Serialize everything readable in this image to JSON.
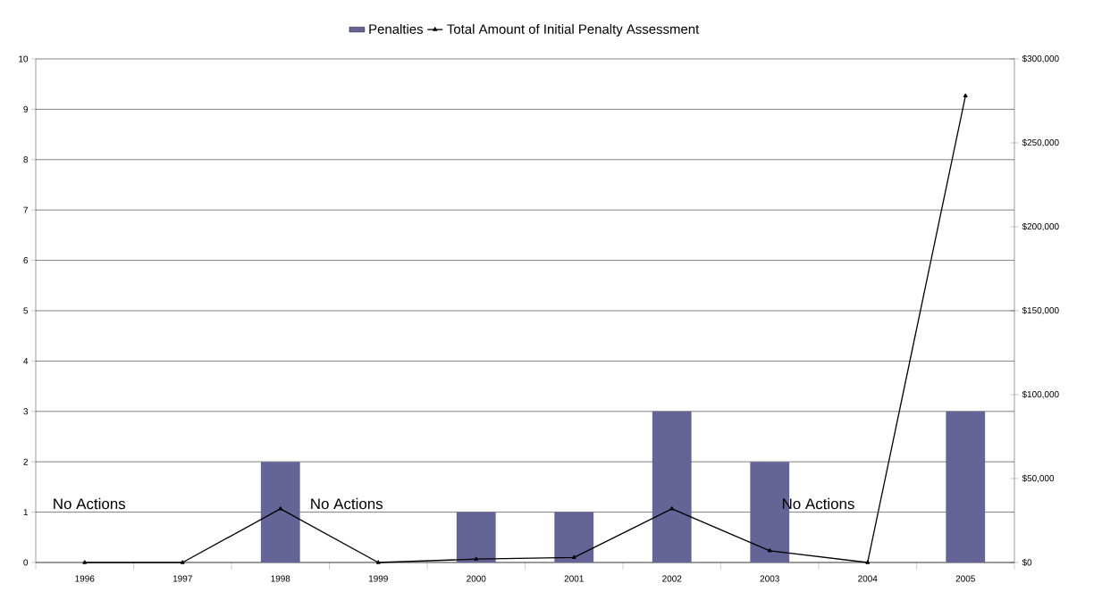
{
  "chart_data": {
    "type": "bar",
    "categories": [
      "1996",
      "1997",
      "1998",
      "1999",
      "2000",
      "2001",
      "2002",
      "2003",
      "2004",
      "2005"
    ],
    "series": [
      {
        "name": "Penalties",
        "color": "#646496",
        "values": [
          0,
          0,
          2,
          0,
          1,
          1,
          3,
          2,
          0,
          3
        ]
      },
      {
        "name": "Total Amount of Initial Penalty Assessment",
        "type": "line",
        "axis": "y2",
        "color": "#000000",
        "values": [
          0,
          0,
          32000,
          0,
          2000,
          3000,
          32000,
          7000,
          0,
          278000
        ]
      }
    ],
    "ylim": [
      0,
      10
    ],
    "yticks": [
      0,
      1,
      2,
      3,
      4,
      5,
      6,
      7,
      8,
      9,
      10
    ],
    "y2lim": [
      0,
      300000
    ],
    "y2ticks": [
      {
        "value": 0,
        "label": "$0"
      },
      {
        "value": 50000,
        "label": "$50,000"
      },
      {
        "value": 100000,
        "label": "$100,000"
      },
      {
        "value": 150000,
        "label": "$150,000"
      },
      {
        "value": 200000,
        "label": "$200,000"
      },
      {
        "value": 250000,
        "label": "$250,000"
      },
      {
        "value": 300000,
        "label": "$300,000"
      }
    ],
    "annotations": [
      "No Actions",
      "No Actions",
      "No Actions"
    ],
    "grid": "y",
    "legend": "top",
    "marker": "triangle",
    "line_style": "solid"
  }
}
